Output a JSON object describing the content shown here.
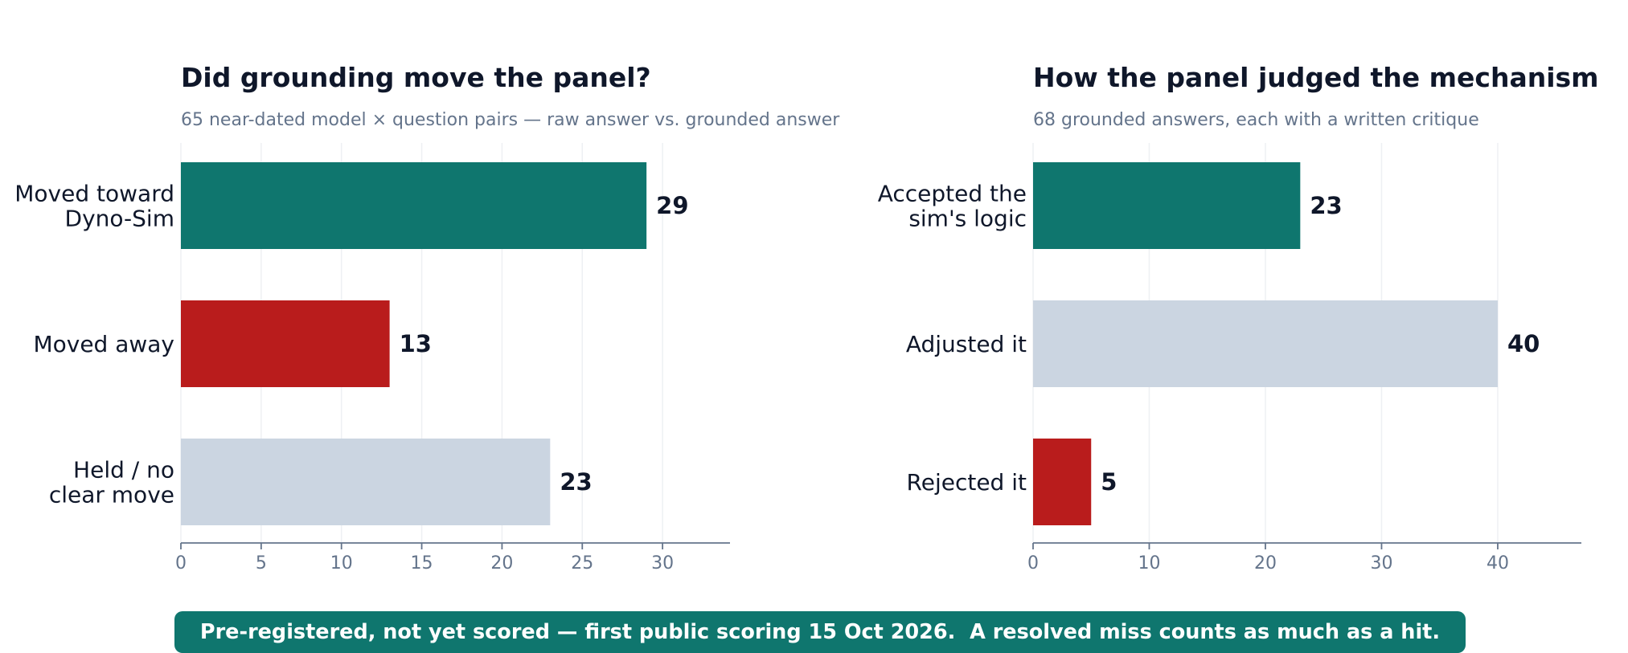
{
  "colors": {
    "teal": "#0f766e",
    "red": "#b91c1c",
    "gray": "#cbd5e1",
    "title": "#0f172a",
    "muted": "#64748b",
    "grid": "#eef0f3"
  },
  "chart_data": [
    {
      "type": "bar",
      "orientation": "horizontal",
      "title": "Did grounding move the panel?",
      "subtitle": "65 near-dated model × question pairs — raw answer vs. grounded answer",
      "categories": [
        [
          "Moved toward",
          "Dyno-Sim"
        ],
        [
          "Moved away"
        ],
        [
          "Held / no",
          "clear move"
        ]
      ],
      "values": [
        29,
        13,
        23
      ],
      "bar_colors": [
        "teal",
        "red",
        "gray"
      ],
      "xlim": [
        0,
        34.2
      ],
      "xticks": [
        0,
        5,
        10,
        15,
        20,
        25,
        30
      ],
      "grid": true
    },
    {
      "type": "bar",
      "orientation": "horizontal",
      "title": "How the panel judged the mechanism",
      "subtitle": "68 grounded answers, each with a written critique",
      "categories": [
        [
          "Accepted the",
          "sim's logic"
        ],
        [
          "Adjusted it"
        ],
        [
          "Rejected it"
        ]
      ],
      "values": [
        23,
        40,
        5
      ],
      "bar_colors": [
        "teal",
        "gray",
        "red"
      ],
      "xlim": [
        0,
        47.2
      ],
      "xticks": [
        0,
        10,
        20,
        30,
        40
      ],
      "grid": true
    }
  ],
  "footer": {
    "banner_text": "Pre-registered, not yet scored — first public scoring 15 Oct 2026.  A resolved miss counts as much as a hit.",
    "banner_color": "#0f766e"
  }
}
